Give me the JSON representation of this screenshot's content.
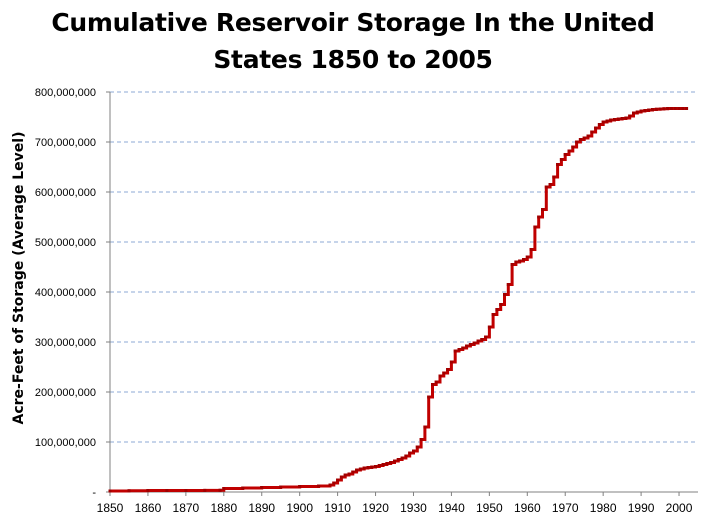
{
  "chart_data": {
    "type": "line",
    "title_lines": [
      "Cumulative Reservoir Storage In the United",
      "States 1850 to 2005"
    ],
    "xlabel": "",
    "ylabel": "Acre-Feet of Storage (Average Level)",
    "xlim": [
      1850,
      2005
    ],
    "ylim": [
      0,
      800000000
    ],
    "x_ticks": [
      "1850",
      "1860",
      "1870",
      "1880",
      "1890",
      "1900",
      "1910",
      "1920",
      "1930",
      "1940",
      "1950",
      "1960",
      "1970",
      "1980",
      "1990",
      "2000"
    ],
    "y_ticks": [
      "-",
      "100,000,000",
      "200,000,000",
      "300,000,000",
      "400,000,000",
      "500,000,000",
      "600,000,000",
      "700,000,000",
      "800,000,000"
    ],
    "grid": "horizontal dashed",
    "series": [
      {
        "color": "#c00000",
        "x": [
          1850,
          1855,
          1860,
          1865,
          1870,
          1875,
          1879,
          1880,
          1885,
          1890,
          1895,
          1900,
          1905,
          1908,
          1909,
          1910,
          1911,
          1912,
          1913,
          1914,
          1915,
          1916,
          1917,
          1918,
          1919,
          1920,
          1921,
          1922,
          1923,
          1924,
          1925,
          1926,
          1927,
          1928,
          1929,
          1930,
          1931,
          1932,
          1933,
          1934,
          1935,
          1936,
          1937,
          1938,
          1939,
          1940,
          1941,
          1942,
          1943,
          1944,
          1945,
          1946,
          1947,
          1948,
          1949,
          1950,
          1951,
          1952,
          1953,
          1954,
          1955,
          1956,
          1957,
          1958,
          1959,
          1960,
          1961,
          1962,
          1963,
          1964,
          1965,
          1966,
          1967,
          1968,
          1969,
          1970,
          1971,
          1972,
          1973,
          1974,
          1975,
          1976,
          1977,
          1978,
          1979,
          1980,
          1981,
          1982,
          1983,
          1984,
          1985,
          1986,
          1987,
          1988,
          1989,
          1990,
          1991,
          1992,
          1993,
          1994,
          1995,
          1996,
          1997,
          1998,
          1999,
          2000,
          2001,
          2002
        ],
        "y": [
          2000000,
          2500000,
          3000000,
          3000000,
          3000000,
          3200000,
          3500000,
          7000000,
          8000000,
          9000000,
          10000000,
          11000000,
          12000000,
          14000000,
          18000000,
          24000000,
          30000000,
          34000000,
          36000000,
          40000000,
          44000000,
          46000000,
          48000000,
          49000000,
          50000000,
          51000000,
          53000000,
          55000000,
          57000000,
          59000000,
          62000000,
          65000000,
          68000000,
          72000000,
          78000000,
          82000000,
          90000000,
          105000000,
          130000000,
          190000000,
          215000000,
          220000000,
          232000000,
          238000000,
          245000000,
          260000000,
          282000000,
          285000000,
          288000000,
          292000000,
          295000000,
          298000000,
          302000000,
          305000000,
          310000000,
          330000000,
          355000000,
          365000000,
          375000000,
          395000000,
          415000000,
          455000000,
          460000000,
          462000000,
          465000000,
          470000000,
          485000000,
          530000000,
          550000000,
          565000000,
          610000000,
          615000000,
          630000000,
          655000000,
          665000000,
          675000000,
          682000000,
          690000000,
          700000000,
          705000000,
          708000000,
          712000000,
          720000000,
          728000000,
          735000000,
          740000000,
          742000000,
          744000000,
          745000000,
          746000000,
          747000000,
          748000000,
          752000000,
          758000000,
          760000000,
          762000000,
          763000000,
          764000000,
          765000000,
          765500000,
          766000000,
          766500000,
          767000000,
          767000000,
          767000000,
          767000000,
          767000000,
          767000000
        ]
      }
    ]
  }
}
